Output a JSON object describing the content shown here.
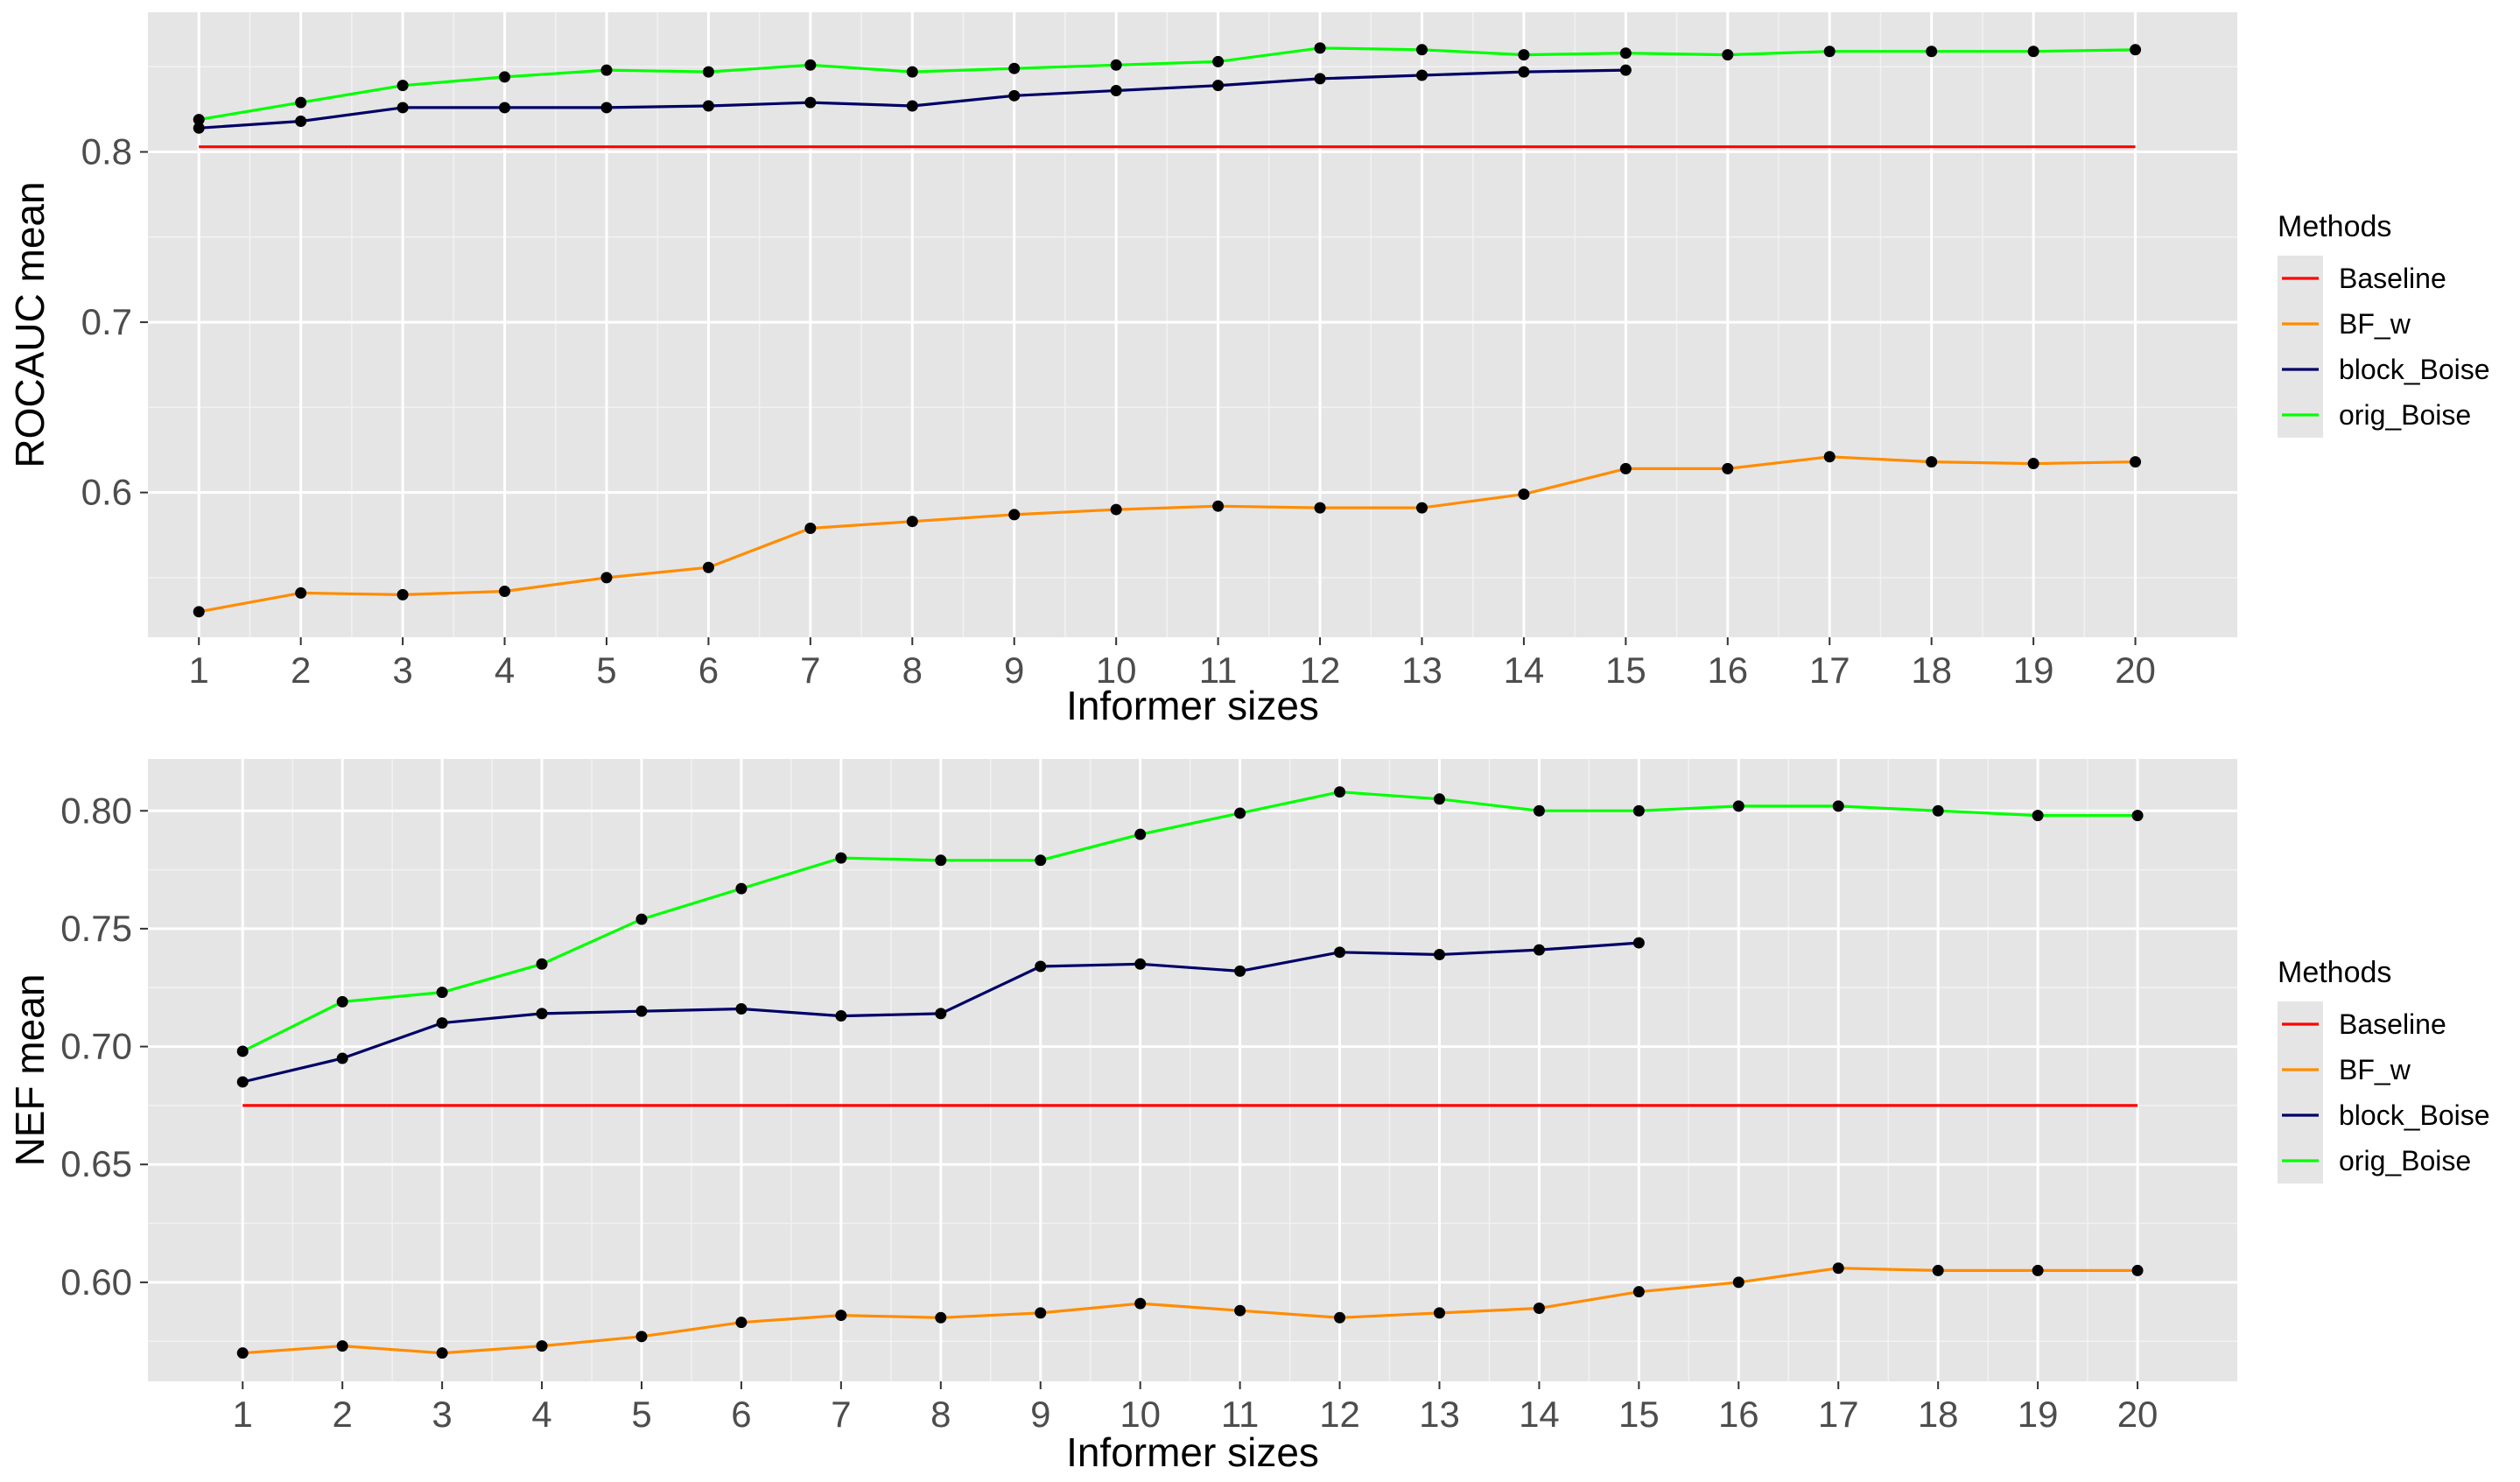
{
  "colors": {
    "panel_background": "#e5e5e5",
    "grid_major": "#ffffff",
    "grid_minor": "#f2f2f2",
    "Baseline": "#ff0000",
    "BF_w": "#ff8c00",
    "block_Boise": "#000066",
    "orig_Boise": "#00ff00",
    "points": "#000000"
  },
  "chart_data": [
    {
      "type": "line",
      "xlabel": "Informer sizes",
      "ylabel": "ROCAUC mean",
      "x": [
        1,
        2,
        3,
        4,
        5,
        6,
        7,
        8,
        9,
        10,
        11,
        12,
        13,
        14,
        15,
        16,
        17,
        18,
        19,
        20
      ],
      "xlim": [
        0.5,
        21
      ],
      "ylim": [
        0.515,
        0.882
      ],
      "yticks": [
        0.6,
        0.7,
        0.8
      ],
      "ytick_labels": [
        "0.6",
        "0.7",
        "0.8"
      ],
      "grid": true,
      "legend": {
        "title": "Methods",
        "position": "right",
        "entries": [
          "Baseline",
          "BF_w",
          "block_Boise",
          "orig_Boise"
        ]
      },
      "series": [
        {
          "name": "Baseline",
          "points": false,
          "x": [
            1,
            20
          ],
          "values": [
            0.803,
            0.803
          ]
        },
        {
          "name": "BF_w",
          "points": true,
          "x": [
            1,
            2,
            3,
            4,
            5,
            6,
            7,
            8,
            9,
            10,
            11,
            12,
            13,
            14,
            15,
            16,
            17,
            18,
            19,
            20
          ],
          "values": [
            0.53,
            0.541,
            0.54,
            0.542,
            0.55,
            0.556,
            0.579,
            0.583,
            0.587,
            0.59,
            0.592,
            0.591,
            0.591,
            0.599,
            0.614,
            0.614,
            0.621,
            0.618,
            0.617,
            0.618
          ]
        },
        {
          "name": "block_Boise",
          "points": true,
          "x": [
            1,
            2,
            3,
            4,
            5,
            6,
            7,
            8,
            9,
            10,
            11,
            12,
            13,
            14,
            15
          ],
          "values": [
            0.814,
            0.818,
            0.826,
            0.826,
            0.826,
            0.827,
            0.829,
            0.827,
            0.833,
            0.836,
            0.839,
            0.843,
            0.845,
            0.847,
            0.848
          ]
        },
        {
          "name": "orig_Boise",
          "points": true,
          "x": [
            1,
            2,
            3,
            4,
            5,
            6,
            7,
            8,
            9,
            10,
            11,
            12,
            13,
            14,
            15,
            16,
            17,
            18,
            19,
            20
          ],
          "values": [
            0.819,
            0.829,
            0.839,
            0.844,
            0.848,
            0.847,
            0.851,
            0.847,
            0.849,
            0.851,
            0.853,
            0.861,
            0.86,
            0.857,
            0.858,
            0.857,
            0.859,
            0.859,
            0.859,
            0.86
          ]
        }
      ]
    },
    {
      "type": "line",
      "xlabel": "Informer sizes",
      "ylabel": "NEF mean",
      "x": [
        1,
        2,
        3,
        4,
        5,
        6,
        7,
        8,
        9,
        10,
        11,
        12,
        13,
        14,
        15,
        16,
        17,
        18,
        19,
        20
      ],
      "xlim": [
        0.05,
        21
      ],
      "ylim": [
        0.558,
        0.822
      ],
      "yticks": [
        0.6,
        0.65,
        0.7,
        0.75,
        0.8
      ],
      "ytick_labels": [
        "0.60",
        "0.65",
        "0.70",
        "0.75",
        "0.80"
      ],
      "grid": true,
      "legend": {
        "title": "Methods",
        "position": "right",
        "entries": [
          "Baseline",
          "BF_w",
          "block_Boise",
          "orig_Boise"
        ]
      },
      "series": [
        {
          "name": "Baseline",
          "points": false,
          "x": [
            1,
            20
          ],
          "values": [
            0.675,
            0.675
          ]
        },
        {
          "name": "BF_w",
          "points": true,
          "x": [
            1,
            2,
            3,
            4,
            5,
            6,
            7,
            8,
            9,
            10,
            11,
            12,
            13,
            14,
            15,
            16,
            17,
            18,
            19,
            20
          ],
          "values": [
            0.57,
            0.573,
            0.57,
            0.573,
            0.577,
            0.583,
            0.586,
            0.585,
            0.587,
            0.591,
            0.588,
            0.585,
            0.587,
            0.589,
            0.596,
            0.6,
            0.606,
            0.605,
            0.605,
            0.605
          ]
        },
        {
          "name": "block_Boise",
          "points": true,
          "x": [
            1,
            2,
            3,
            4,
            5,
            6,
            7,
            8,
            9,
            10,
            11,
            12,
            13,
            14,
            15
          ],
          "values": [
            0.685,
            0.695,
            0.71,
            0.714,
            0.715,
            0.716,
            0.713,
            0.714,
            0.734,
            0.735,
            0.732,
            0.74,
            0.739,
            0.741,
            0.744
          ]
        },
        {
          "name": "orig_Boise",
          "points": true,
          "x": [
            1,
            2,
            3,
            4,
            5,
            6,
            7,
            8,
            9,
            10,
            11,
            12,
            13,
            14,
            15,
            16,
            17,
            18,
            19,
            20
          ],
          "values": [
            0.698,
            0.719,
            0.723,
            0.735,
            0.754,
            0.767,
            0.78,
            0.779,
            0.779,
            0.79,
            0.799,
            0.808,
            0.805,
            0.8,
            0.8,
            0.802,
            0.802,
            0.8,
            0.798,
            0.798
          ]
        }
      ]
    }
  ]
}
